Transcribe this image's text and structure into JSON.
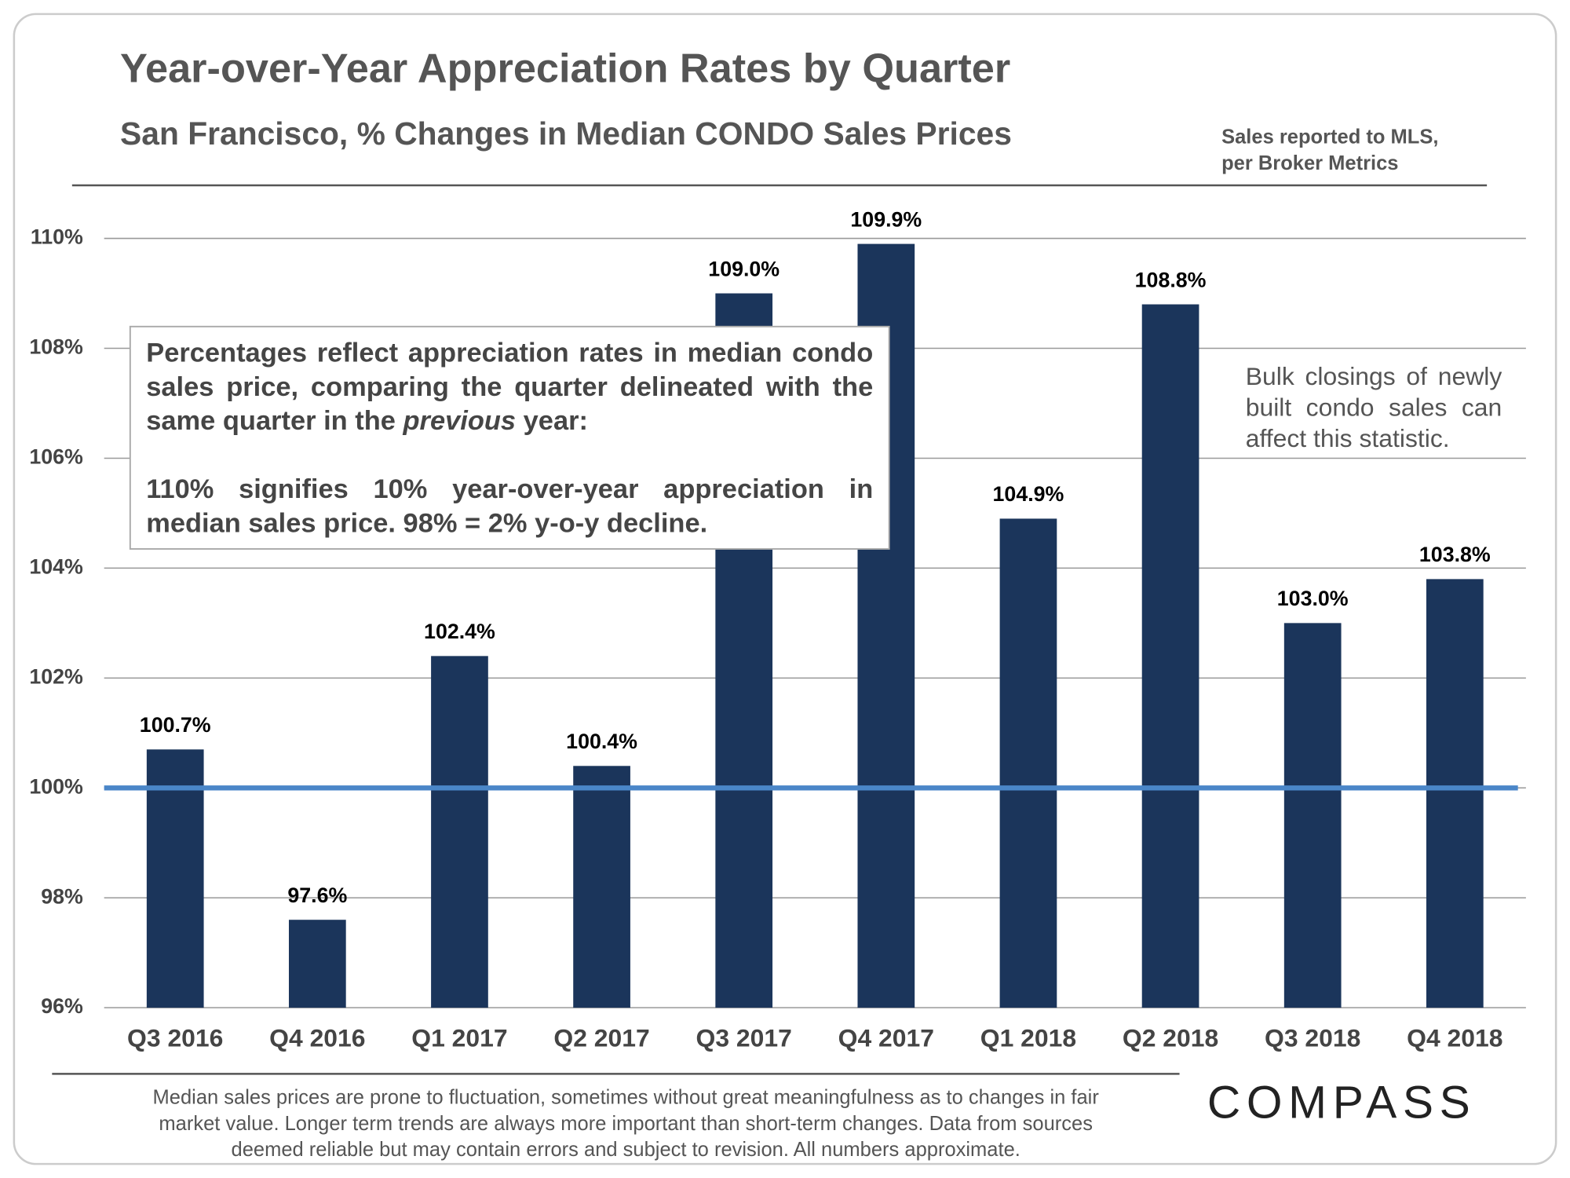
{
  "chart_data": {
    "type": "bar",
    "title": "Year-over-Year Appreciation Rates by Quarter",
    "subtitle": "San Francisco, % Changes in Median CONDO Sales Prices",
    "source": [
      "Sales reported to MLS,",
      "per Broker Metrics"
    ],
    "categories": [
      "Q3 2016",
      "Q4 2016",
      "Q1 2017",
      "Q2 2017",
      "Q3 2017",
      "Q4 2017",
      "Q1 2018",
      "Q2 2018",
      "Q3 2018",
      "Q4 2018"
    ],
    "values": [
      100.7,
      97.6,
      102.4,
      100.4,
      109.0,
      109.9,
      104.9,
      108.8,
      103.0,
      103.8
    ],
    "value_labels": [
      "100.7%",
      "97.6%",
      "102.4%",
      "100.4%",
      "109.0%",
      "109.9%",
      "104.9%",
      "108.8%",
      "103.0%",
      "103.8%"
    ],
    "color": "#1b355b",
    "ylim": [
      96,
      110
    ],
    "yticks": [
      {
        "value": 96,
        "label": "96%"
      },
      {
        "value": 98,
        "label": "98%"
      },
      {
        "value": 100,
        "label": "100%"
      },
      {
        "value": 102,
        "label": "102%"
      },
      {
        "value": 104,
        "label": "104%"
      },
      {
        "value": 106,
        "label": "106%"
      },
      {
        "value": 108,
        "label": "108%"
      },
      {
        "value": 110,
        "label": "110%"
      }
    ],
    "grid": true,
    "reference_line": {
      "value": 100,
      "color": "#4a86c8"
    },
    "annotation": {
      "paragraphs": [
        [
          "Percentages reflect appreciation rates in median condo sales price, comparing the quarter delineated with the same quarter in the ",
          "previous",
          " year:"
        ],
        [
          "110% signifies 10% year-over-year appreciation in median sales price. 98% = 2% y-o-y decline."
        ]
      ]
    },
    "side_note": "Bulk closings of newly built condo sales can affect this statistic.",
    "footer": [
      "Median sales prices are prone to fluctuation, sometimes without great meaningfulness as to changes in fair",
      "market value. Longer term trends are always more important than short-term changes. Data from sources",
      "deemed reliable but may contain errors and subject to revision. All numbers approximate."
    ],
    "logo": "COMPASS"
  }
}
